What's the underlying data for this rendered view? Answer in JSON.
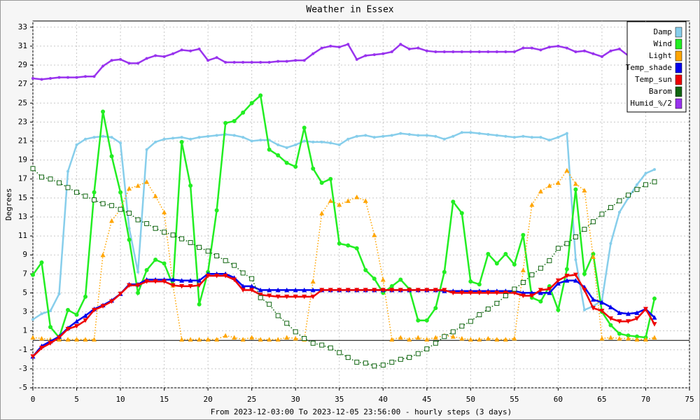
{
  "chart_data": {
    "type": "line",
    "title": "Weather in Essex",
    "ylabel": "Degrees",
    "xlabel": "From 2023-12-03:00 To 2023-12-05 23:56:00 - hourly steps (3 days)",
    "xlim": [
      0,
      75
    ],
    "xticks": [
      0,
      5,
      10,
      15,
      20,
      25,
      30,
      35,
      40,
      45,
      50,
      55,
      60,
      65,
      70,
      75
    ],
    "ylim": [
      -5,
      33.65
    ],
    "yticks": [
      -5,
      -3,
      -1,
      1,
      3,
      5,
      7,
      9,
      11,
      13,
      15,
      17,
      19,
      21,
      23,
      25,
      27,
      29,
      31,
      33
    ],
    "grid": true,
    "legend": "upper right",
    "x": [
      0,
      1,
      2,
      3,
      4,
      5,
      6,
      7,
      8,
      9,
      10,
      11,
      12,
      13,
      14,
      15,
      16,
      17,
      18,
      19,
      20,
      21,
      22,
      23,
      24,
      25,
      26,
      27,
      28,
      29,
      30,
      31,
      32,
      33,
      34,
      35,
      36,
      37,
      38,
      39,
      40,
      41,
      42,
      43,
      44,
      45,
      46,
      47,
      48,
      49,
      50,
      51,
      52,
      53,
      54,
      55,
      56,
      57,
      58,
      59,
      60,
      61,
      62,
      63,
      64,
      65,
      66,
      67,
      68,
      69,
      70,
      71
    ],
    "series": [
      {
        "name": "Damp",
        "color": "#87ceeb",
        "marker": "dot",
        "line_style": "solid",
        "values": [
          2.2,
          2.8,
          3.1,
          4.9,
          17.8,
          20.6,
          21.2,
          21.4,
          21.5,
          21.4,
          20.8,
          11.8,
          7.2,
          20.1,
          20.9,
          21.2,
          21.3,
          21.4,
          21.2,
          21.4,
          21.5,
          21.6,
          21.7,
          21.6,
          21.4,
          21.0,
          21.1,
          21.1,
          20.6,
          20.3,
          20.6,
          21.0,
          20.9,
          20.9,
          20.8,
          20.6,
          21.2,
          21.5,
          21.6,
          21.4,
          21.5,
          21.6,
          21.8,
          21.7,
          21.6,
          21.6,
          21.5,
          21.2,
          21.5,
          21.9,
          21.9,
          21.8,
          21.7,
          21.6,
          21.5,
          21.4,
          21.5,
          21.4,
          21.4,
          21.1,
          21.4,
          21.8,
          8.5,
          3.2,
          3.6,
          4.2,
          10.2,
          13.5,
          15.0,
          16.4,
          17.6,
          18.0
        ]
      },
      {
        "name": "Wind",
        "color": "#22ee22",
        "marker": "circle",
        "line_style": "solid",
        "values": [
          6.9,
          8.2,
          1.4,
          0.3,
          3.2,
          2.7,
          4.6,
          15.6,
          24.1,
          19.4,
          15.6,
          10.6,
          5.0,
          7.4,
          8.5,
          8.1,
          5.8,
          20.9,
          16.3,
          3.8,
          7.2,
          13.7,
          22.9,
          23.1,
          24.0,
          25.0,
          25.8,
          20.1,
          19.5,
          18.7,
          18.3,
          22.4,
          18.1,
          16.6,
          17.0,
          10.2,
          10.0,
          9.7,
          7.4,
          6.5,
          5.0,
          5.7,
          6.4,
          5.4,
          2.1,
          2.1,
          3.4,
          7.2,
          14.6,
          13.4,
          6.2,
          5.9,
          9.1,
          8.1,
          9.1,
          8.0,
          11.1,
          4.5,
          4.1,
          5.7,
          3.2,
          7.5,
          15.9,
          7.0,
          9.1,
          3.0,
          1.6,
          0.7,
          0.5,
          0.4,
          0.3,
          4.4
        ]
      },
      {
        "name": "Light",
        "color": "#ffa500",
        "marker": "triangle",
        "line_style": "dotted",
        "values": [
          0.3,
          0.2,
          0.1,
          0.1,
          0.1,
          0.1,
          0.1,
          0.1,
          9.0,
          12.6,
          13.8,
          16.0,
          16.3,
          16.7,
          15.2,
          13.5,
          5.8,
          0.1,
          0.1,
          0.1,
          0.1,
          0.1,
          0.5,
          0.3,
          0.1,
          0.3,
          0.1,
          0.1,
          0.1,
          0.3,
          0.2,
          0.1,
          6.2,
          13.4,
          14.7,
          14.3,
          14.7,
          15.1,
          14.7,
          11.1,
          6.4,
          0.1,
          0.3,
          0.1,
          0.3,
          0.1,
          0.3,
          0.5,
          0.4,
          0.2,
          0.1,
          0.1,
          0.2,
          0.1,
          0.1,
          0.2,
          7.4,
          14.3,
          15.7,
          16.3,
          16.6,
          17.9,
          16.5,
          15.8,
          8.8,
          0.2,
          0.3,
          0.2,
          0.2,
          0.1,
          0.1,
          0.3
        ]
      },
      {
        "name": "Temp_shade",
        "color": "#0000ee",
        "marker": "triangle",
        "line_style": "solid",
        "values": [
          -1.7,
          -0.6,
          -0.1,
          0.4,
          1.3,
          2.0,
          2.6,
          3.3,
          3.7,
          4.2,
          4.9,
          5.9,
          5.9,
          6.4,
          6.4,
          6.4,
          6.4,
          6.3,
          6.3,
          6.3,
          7.0,
          7.0,
          7.0,
          6.6,
          5.7,
          5.7,
          5.3,
          5.3,
          5.3,
          5.3,
          5.3,
          5.3,
          5.3,
          5.3,
          5.3,
          5.3,
          5.3,
          5.3,
          5.3,
          5.3,
          5.3,
          5.3,
          5.3,
          5.3,
          5.3,
          5.3,
          5.3,
          5.2,
          5.2,
          5.2,
          5.2,
          5.2,
          5.2,
          5.2,
          5.2,
          5.2,
          5.0,
          5.0,
          5.0,
          5.0,
          6.0,
          6.3,
          6.3,
          5.6,
          4.3,
          4.0,
          3.5,
          2.9,
          2.8,
          2.9,
          3.3,
          2.4
        ]
      },
      {
        "name": "Temp_sun",
        "color": "#ee0000",
        "marker": "triangle-down",
        "line_style": "solid",
        "values": [
          -1.7,
          -0.8,
          -0.3,
          0.3,
          1.2,
          1.5,
          2.1,
          3.2,
          3.6,
          4.1,
          4.9,
          5.8,
          5.8,
          6.2,
          6.2,
          6.2,
          5.8,
          5.7,
          5.7,
          5.8,
          6.8,
          6.8,
          6.8,
          6.4,
          5.3,
          5.3,
          4.8,
          4.7,
          4.6,
          4.6,
          4.6,
          4.6,
          4.6,
          5.3,
          5.3,
          5.3,
          5.3,
          5.3,
          5.3,
          5.3,
          5.3,
          5.3,
          5.3,
          5.3,
          5.3,
          5.3,
          5.3,
          5.3,
          5.0,
          5.0,
          5.0,
          5.0,
          5.0,
          5.0,
          5.0,
          5.0,
          4.7,
          4.7,
          5.3,
          5.4,
          6.3,
          6.8,
          6.9,
          5.3,
          3.4,
          3.1,
          2.3,
          2.0,
          2.0,
          2.3,
          3.3,
          1.7
        ]
      },
      {
        "name": "Barom",
        "color": "#116611",
        "marker": "square",
        "line_style": "dotted",
        "values": [
          18.1,
          17.2,
          17.0,
          16.6,
          16.1,
          15.6,
          15.2,
          14.8,
          14.4,
          14.2,
          13.8,
          13.4,
          12.7,
          12.3,
          11.8,
          11.4,
          11.1,
          10.7,
          10.3,
          9.8,
          9.4,
          8.9,
          8.4,
          7.9,
          7.1,
          6.5,
          4.5,
          3.8,
          2.6,
          1.8,
          0.9,
          0.2,
          -0.3,
          -0.5,
          -0.8,
          -1.3,
          -1.8,
          -2.3,
          -2.4,
          -2.7,
          -2.6,
          -2.3,
          -2.0,
          -1.8,
          -1.4,
          -0.9,
          -0.3,
          0.4,
          0.9,
          1.5,
          2.0,
          2.7,
          3.3,
          3.9,
          4.7,
          5.4,
          6.1,
          6.9,
          7.6,
          8.4,
          9.7,
          10.2,
          10.9,
          11.7,
          12.5,
          13.3,
          14.0,
          14.7,
          15.3,
          15.9,
          16.4,
          16.7
        ]
      },
      {
        "name": "Humid_%/2",
        "color": "#9933ee",
        "marker": "dot",
        "line_style": "solid",
        "values": [
          27.6,
          27.5,
          27.6,
          27.7,
          27.7,
          27.7,
          27.8,
          27.8,
          28.9,
          29.5,
          29.6,
          29.2,
          29.2,
          29.7,
          30.0,
          29.9,
          30.2,
          30.6,
          30.5,
          30.7,
          29.5,
          29.8,
          29.3,
          29.3,
          29.3,
          29.3,
          29.3,
          29.3,
          29.4,
          29.4,
          29.5,
          29.5,
          30.2,
          30.8,
          31.0,
          30.9,
          31.2,
          29.6,
          30.0,
          30.1,
          30.2,
          30.4,
          31.2,
          30.7,
          30.8,
          30.5,
          30.4,
          30.4,
          30.4,
          30.4,
          30.4,
          30.4,
          30.4,
          30.4,
          30.4,
          30.4,
          30.8,
          30.8,
          30.6,
          30.9,
          31.0,
          30.8,
          30.4,
          30.5,
          30.2,
          29.9,
          30.5,
          30.7,
          30.0,
          29.8,
          29.7,
          29.6
        ]
      }
    ]
  }
}
